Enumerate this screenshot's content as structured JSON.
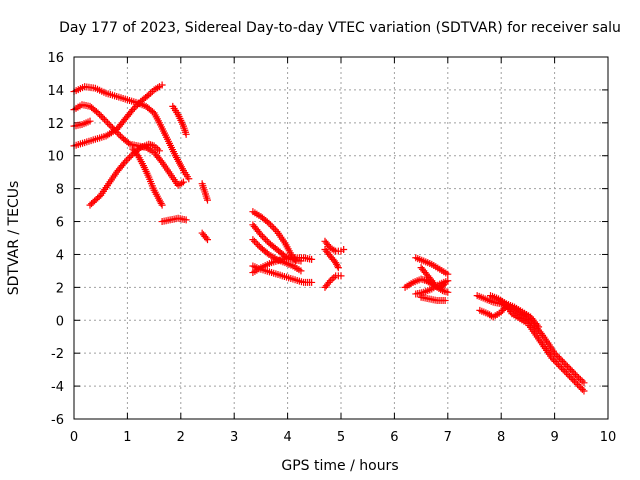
{
  "chart_data": {
    "type": "scatter",
    "title": "Day 177 of 2023, Sidereal Day-to-day VTEC variation (SDTVAR) for receiver salu",
    "xlabel": "GPS time / hours",
    "ylabel": "SDTVAR / TECUs",
    "xlim": [
      0,
      10
    ],
    "ylim": [
      -6,
      16
    ],
    "xticks": [
      0,
      1,
      2,
      3,
      4,
      5,
      6,
      7,
      8,
      9,
      10
    ],
    "yticks": [
      -6,
      -4,
      -2,
      0,
      2,
      4,
      6,
      8,
      10,
      12,
      14,
      16
    ],
    "grid": true,
    "marker": "plus",
    "color": "#ff0000",
    "series": [
      {
        "points": [
          [
            0.0,
            13.9
          ],
          [
            0.2,
            14.2
          ],
          [
            0.4,
            14.1
          ],
          [
            0.6,
            13.8
          ],
          [
            0.8,
            13.6
          ],
          [
            1.0,
            13.4
          ],
          [
            1.2,
            13.2
          ],
          [
            1.35,
            13.0
          ],
          [
            1.5,
            12.6
          ],
          [
            1.6,
            12.0
          ],
          [
            1.75,
            11.0
          ],
          [
            1.9,
            10.0
          ],
          [
            2.05,
            9.1
          ],
          [
            2.15,
            8.6
          ]
        ]
      },
      {
        "points": [
          [
            0.0,
            12.8
          ],
          [
            0.15,
            13.1
          ],
          [
            0.3,
            13.0
          ],
          [
            0.45,
            12.6
          ],
          [
            0.6,
            12.1
          ],
          [
            0.75,
            11.6
          ],
          [
            0.9,
            11.1
          ],
          [
            1.05,
            10.7
          ],
          [
            1.2,
            10.6
          ],
          [
            1.35,
            10.5
          ],
          [
            1.5,
            10.2
          ],
          [
            1.65,
            9.6
          ],
          [
            1.8,
            8.9
          ],
          [
            1.95,
            8.2
          ],
          [
            2.05,
            8.4
          ]
        ]
      },
      {
        "points": [
          [
            0.0,
            11.8
          ],
          [
            0.15,
            11.9
          ],
          [
            0.3,
            12.1
          ]
        ]
      },
      {
        "points": [
          [
            0.0,
            10.6
          ],
          [
            0.2,
            10.8
          ],
          [
            0.4,
            11.0
          ],
          [
            0.6,
            11.2
          ],
          [
            0.8,
            11.6
          ],
          [
            0.95,
            12.2
          ],
          [
            1.1,
            12.8
          ],
          [
            1.25,
            13.3
          ],
          [
            1.4,
            13.7
          ],
          [
            1.5,
            14.0
          ],
          [
            1.6,
            14.2
          ],
          [
            1.65,
            14.3
          ]
        ]
      },
      {
        "points": [
          [
            0.3,
            7.0
          ],
          [
            0.5,
            7.6
          ],
          [
            0.65,
            8.3
          ],
          [
            0.8,
            9.0
          ],
          [
            0.95,
            9.6
          ],
          [
            1.1,
            10.1
          ],
          [
            1.25,
            10.5
          ],
          [
            1.4,
            10.7
          ],
          [
            1.5,
            10.6
          ],
          [
            1.6,
            10.3
          ]
        ]
      },
      {
        "points": [
          [
            1.1,
            10.4
          ],
          [
            1.2,
            10.0
          ],
          [
            1.3,
            9.4
          ],
          [
            1.4,
            8.7
          ],
          [
            1.5,
            7.9
          ],
          [
            1.6,
            7.3
          ],
          [
            1.65,
            7.0
          ]
        ]
      },
      {
        "points": [
          [
            1.65,
            6.0
          ],
          [
            1.8,
            6.1
          ],
          [
            1.95,
            6.2
          ],
          [
            2.1,
            6.1
          ]
        ]
      },
      {
        "points": [
          [
            1.85,
            13.0
          ],
          [
            1.95,
            12.5
          ],
          [
            2.05,
            11.8
          ],
          [
            2.1,
            11.3
          ]
        ]
      },
      {
        "points": [
          [
            2.4,
            8.3
          ],
          [
            2.45,
            7.8
          ],
          [
            2.5,
            7.3
          ]
        ]
      },
      {
        "points": [
          [
            2.4,
            5.3
          ],
          [
            2.45,
            5.1
          ],
          [
            2.5,
            4.9
          ]
        ]
      },
      {
        "points": [
          [
            3.35,
            6.6
          ],
          [
            3.5,
            6.3
          ],
          [
            3.65,
            5.9
          ],
          [
            3.8,
            5.4
          ],
          [
            3.95,
            4.7
          ],
          [
            4.05,
            4.1
          ],
          [
            4.15,
            3.6
          ]
        ]
      },
      {
        "points": [
          [
            3.35,
            5.8
          ],
          [
            3.5,
            5.2
          ],
          [
            3.65,
            4.7
          ],
          [
            3.8,
            4.3
          ],
          [
            3.95,
            3.9
          ],
          [
            4.1,
            3.7
          ],
          [
            4.25,
            3.6
          ]
        ]
      },
      {
        "points": [
          [
            3.35,
            4.9
          ],
          [
            3.5,
            4.4
          ],
          [
            3.65,
            4.0
          ],
          [
            3.8,
            3.7
          ],
          [
            3.95,
            3.5
          ],
          [
            4.1,
            3.3
          ],
          [
            4.25,
            3.0
          ]
        ]
      },
      {
        "points": [
          [
            3.35,
            3.3
          ],
          [
            3.5,
            3.1
          ],
          [
            3.7,
            2.9
          ],
          [
            3.9,
            2.7
          ],
          [
            4.1,
            2.5
          ],
          [
            4.3,
            2.3
          ],
          [
            4.45,
            2.3
          ]
        ]
      },
      {
        "points": [
          [
            3.35,
            2.9
          ],
          [
            3.5,
            3.2
          ],
          [
            3.7,
            3.5
          ],
          [
            3.9,
            3.7
          ],
          [
            4.1,
            3.8
          ],
          [
            4.3,
            3.8
          ],
          [
            4.45,
            3.7
          ]
        ]
      },
      {
        "points": [
          [
            4.7,
            4.8
          ],
          [
            4.8,
            4.4
          ],
          [
            4.9,
            4.2
          ],
          [
            5.0,
            4.2
          ],
          [
            5.05,
            4.3
          ]
        ]
      },
      {
        "points": [
          [
            4.7,
            4.3
          ],
          [
            4.8,
            3.9
          ],
          [
            4.9,
            3.5
          ],
          [
            4.95,
            3.2
          ]
        ]
      },
      {
        "points": [
          [
            4.7,
            2.0
          ],
          [
            4.8,
            2.4
          ],
          [
            4.9,
            2.7
          ],
          [
            5.0,
            2.7
          ]
        ]
      },
      {
        "points": [
          [
            6.2,
            2.0
          ],
          [
            6.35,
            2.3
          ],
          [
            6.5,
            2.5
          ],
          [
            6.6,
            2.4
          ],
          [
            6.7,
            2.2
          ],
          [
            6.85,
            2.0
          ],
          [
            6.95,
            2.2
          ]
        ]
      },
      {
        "points": [
          [
            6.4,
            3.8
          ],
          [
            6.55,
            3.6
          ],
          [
            6.7,
            3.4
          ],
          [
            6.85,
            3.1
          ],
          [
            7.0,
            2.8
          ]
        ]
      },
      {
        "points": [
          [
            6.5,
            3.2
          ],
          [
            6.6,
            2.8
          ],
          [
            6.7,
            2.4
          ],
          [
            6.8,
            2.0
          ],
          [
            6.9,
            1.8
          ],
          [
            7.0,
            1.7
          ]
        ]
      },
      {
        "points": [
          [
            6.4,
            1.6
          ],
          [
            6.55,
            1.7
          ],
          [
            6.7,
            1.9
          ],
          [
            6.85,
            2.2
          ],
          [
            7.0,
            2.4
          ]
        ]
      },
      {
        "points": [
          [
            6.5,
            1.4
          ],
          [
            6.65,
            1.3
          ],
          [
            6.8,
            1.2
          ],
          [
            6.95,
            1.2
          ]
        ]
      },
      {
        "points": [
          [
            7.55,
            1.5
          ],
          [
            7.7,
            1.3
          ],
          [
            7.85,
            1.1
          ],
          [
            8.0,
            1.0
          ],
          [
            8.15,
            0.8
          ],
          [
            8.3,
            0.5
          ],
          [
            8.45,
            0.2
          ],
          [
            8.6,
            -0.2
          ],
          [
            8.75,
            -0.8
          ],
          [
            8.9,
            -1.5
          ],
          [
            9.0,
            -2.0
          ],
          [
            9.15,
            -2.5
          ],
          [
            9.3,
            -3.0
          ],
          [
            9.45,
            -3.5
          ],
          [
            9.55,
            -3.8
          ]
        ]
      },
      {
        "points": [
          [
            7.6,
            0.6
          ],
          [
            7.75,
            0.4
          ],
          [
            7.85,
            0.2
          ],
          [
            8.0,
            0.5
          ],
          [
            8.1,
            0.9
          ],
          [
            8.2,
            0.4
          ],
          [
            8.35,
            0.1
          ],
          [
            8.5,
            -0.2
          ],
          [
            8.65,
            -0.9
          ],
          [
            8.8,
            -1.6
          ],
          [
            8.95,
            -2.3
          ],
          [
            9.1,
            -2.8
          ],
          [
            9.25,
            -3.3
          ],
          [
            9.4,
            -3.8
          ],
          [
            9.55,
            -4.3
          ]
        ]
      },
      {
        "points": [
          [
            7.8,
            1.5
          ],
          [
            7.95,
            1.3
          ],
          [
            8.1,
            1.0
          ],
          [
            8.25,
            0.8
          ],
          [
            8.4,
            0.5
          ],
          [
            8.55,
            0.2
          ],
          [
            8.7,
            -0.4
          ]
        ]
      }
    ]
  }
}
